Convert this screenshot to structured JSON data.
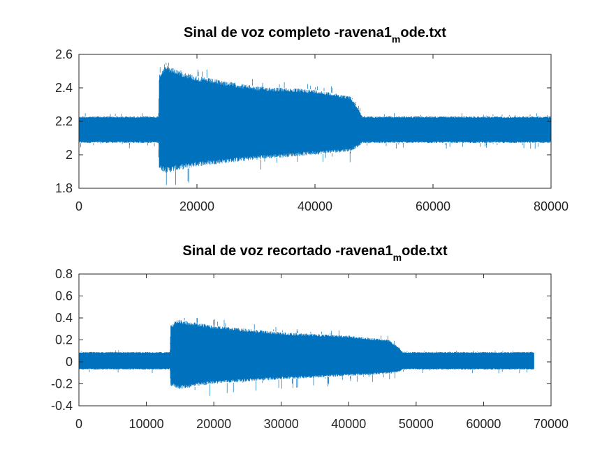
{
  "chart_data": [
    {
      "type": "line",
      "title": {
        "main": "Sinal de voz completo -ravena1",
        "sub": "m",
        "rest": "ode.txt"
      },
      "xlim": [
        0,
        80000
      ],
      "ylim": [
        1.8,
        2.6
      ],
      "xticks": [
        0,
        20000,
        40000,
        60000,
        80000
      ],
      "yticks": [
        1.8,
        2,
        2.2,
        2.4,
        2.6
      ],
      "xtick_labels": [
        "0",
        "20000",
        "40000",
        "60000",
        "80000"
      ],
      "ytick_labels": [
        "1.8",
        "2",
        "2.2",
        "2.4",
        "2.6"
      ],
      "grid": false,
      "color": "#0072BD",
      "series": [
        {
          "x_end": 80000,
          "envelope_upper": [
            [
              0,
              2.23
            ],
            [
              13500,
              2.23
            ],
            [
              13600,
              2.48
            ],
            [
              14500,
              2.54
            ],
            [
              20000,
              2.47
            ],
            [
              30000,
              2.41
            ],
            [
              40000,
              2.39
            ],
            [
              46000,
              2.35
            ],
            [
              47500,
              2.27
            ],
            [
              48000,
              2.23
            ],
            [
              80000,
              2.23
            ]
          ],
          "envelope_lower": [
            [
              0,
              2.07
            ],
            [
              13500,
              2.07
            ],
            [
              13600,
              1.91
            ],
            [
              15000,
              1.89
            ],
            [
              20000,
              1.93
            ],
            [
              30000,
              1.97
            ],
            [
              40000,
              2.0
            ],
            [
              46000,
              2.02
            ],
            [
              47500,
              2.05
            ],
            [
              48000,
              2.07
            ],
            [
              80000,
              2.07
            ]
          ],
          "spike_high": 2.55,
          "spike_low": 1.82
        }
      ]
    },
    {
      "type": "line",
      "title": {
        "main": "Sinal de voz recortado -ravena1",
        "sub": "m",
        "rest": "ode.txt"
      },
      "xlim": [
        0,
        70000
      ],
      "ylim": [
        -0.4,
        0.8
      ],
      "xticks": [
        0,
        10000,
        20000,
        30000,
        40000,
        50000,
        60000,
        70000
      ],
      "yticks": [
        -0.4,
        -0.2,
        0,
        0.2,
        0.4,
        0.6,
        0.8
      ],
      "xtick_labels": [
        "0",
        "10000",
        "20000",
        "30000",
        "40000",
        "50000",
        "60000",
        "70000"
      ],
      "ytick_labels": [
        "-0.4",
        "-0.2",
        "0",
        "0.2",
        "0.4",
        "0.6",
        "0.8"
      ],
      "grid": false,
      "color": "#0072BD",
      "series": [
        {
          "x_end": 67500,
          "envelope_upper": [
            [
              0,
              0.09
            ],
            [
              13500,
              0.09
            ],
            [
              13600,
              0.33
            ],
            [
              14500,
              0.39
            ],
            [
              20000,
              0.33
            ],
            [
              30000,
              0.27
            ],
            [
              40000,
              0.24
            ],
            [
              46000,
              0.2
            ],
            [
              47500,
              0.13
            ],
            [
              48000,
              0.09
            ],
            [
              67500,
              0.09
            ]
          ],
          "envelope_lower": [
            [
              0,
              -0.07
            ],
            [
              13500,
              -0.07
            ],
            [
              13600,
              -0.22
            ],
            [
              15000,
              -0.25
            ],
            [
              20000,
              -0.2
            ],
            [
              30000,
              -0.16
            ],
            [
              40000,
              -0.13
            ],
            [
              46000,
              -0.11
            ],
            [
              47500,
              -0.09
            ],
            [
              48000,
              -0.07
            ],
            [
              67500,
              -0.07
            ]
          ],
          "spike_high": 0.4,
          "spike_low": -0.31
        }
      ]
    }
  ]
}
